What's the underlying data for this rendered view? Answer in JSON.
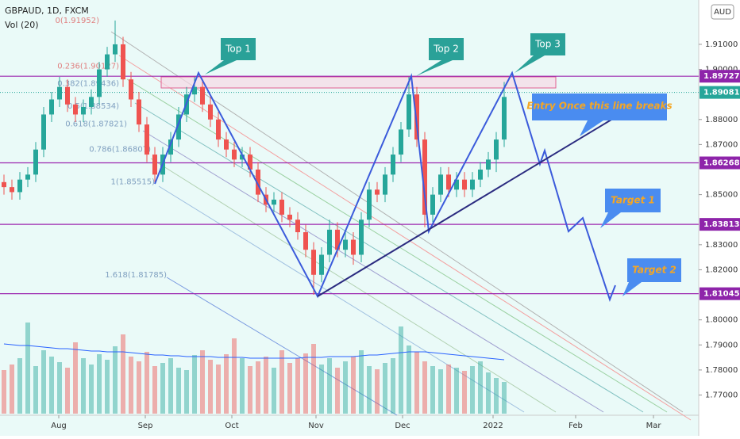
{
  "chart_data": {
    "type": "candlestick",
    "title": "GBPAUD, 1D, FXCM",
    "volume_title": "Vol (20)",
    "currency": "AUD",
    "x": [
      0,
      1,
      2,
      3,
      4,
      5,
      6,
      7,
      8,
      9,
      10,
      11,
      12,
      13,
      14,
      15,
      16,
      17,
      18,
      19,
      20,
      21,
      22,
      23,
      24,
      25,
      26,
      27,
      28,
      29,
      30,
      31,
      32,
      33,
      34,
      35,
      36,
      37,
      38,
      39,
      40,
      41,
      42,
      43,
      44,
      45,
      46,
      47,
      48,
      49,
      50,
      51,
      52,
      53,
      54,
      55,
      56,
      57,
      58,
      59,
      60,
      61,
      62,
      63
    ],
    "candles": [
      [
        1.855,
        1.858,
        1.85,
        1.853
      ],
      [
        1.853,
        1.856,
        1.848,
        1.851
      ],
      [
        1.851,
        1.859,
        1.848,
        1.856
      ],
      [
        1.856,
        1.861,
        1.853,
        1.858
      ],
      [
        1.858,
        1.871,
        1.855,
        1.868
      ],
      [
        1.868,
        1.885,
        1.865,
        1.882
      ],
      [
        1.882,
        1.891,
        1.879,
        1.888
      ],
      [
        1.888,
        1.897,
        1.885,
        1.893
      ],
      [
        1.893,
        1.896,
        1.883,
        1.886
      ],
      [
        1.886,
        1.889,
        1.879,
        1.882
      ],
      [
        1.882,
        1.888,
        1.879,
        1.885
      ],
      [
        1.885,
        1.892,
        1.882,
        1.889
      ],
      [
        1.889,
        1.903,
        1.886,
        1.9
      ],
      [
        1.9,
        1.909,
        1.897,
        1.906
      ],
      [
        1.906,
        1.9195,
        1.903,
        1.91
      ],
      [
        1.91,
        1.913,
        1.893,
        1.896
      ],
      [
        1.896,
        1.899,
        1.885,
        1.888
      ],
      [
        1.888,
        1.891,
        1.875,
        1.878
      ],
      [
        1.878,
        1.881,
        1.863,
        1.866
      ],
      [
        1.866,
        1.869,
        1.855,
        1.858
      ],
      [
        1.858,
        1.869,
        1.855,
        1.866
      ],
      [
        1.866,
        1.875,
        1.863,
        1.872
      ],
      [
        1.872,
        1.885,
        1.869,
        1.882
      ],
      [
        1.882,
        1.893,
        1.879,
        1.89
      ],
      [
        1.89,
        1.897,
        1.887,
        1.893
      ],
      [
        1.893,
        1.896,
        1.883,
        1.886
      ],
      [
        1.886,
        1.889,
        1.877,
        1.88
      ],
      [
        1.88,
        1.883,
        1.869,
        1.872
      ],
      [
        1.872,
        1.875,
        1.865,
        1.868
      ],
      [
        1.868,
        1.871,
        1.861,
        1.864
      ],
      [
        1.864,
        1.869,
        1.861,
        1.866
      ],
      [
        1.866,
        1.869,
        1.857,
        1.86
      ],
      [
        1.86,
        1.863,
        1.847,
        1.85
      ],
      [
        1.85,
        1.853,
        1.843,
        1.846
      ],
      [
        1.846,
        1.851,
        1.843,
        1.848
      ],
      [
        1.848,
        1.851,
        1.839,
        1.842
      ],
      [
        1.842,
        1.845,
        1.837,
        1.84
      ],
      [
        1.84,
        1.843,
        1.832,
        1.835
      ],
      [
        1.835,
        1.838,
        1.825,
        1.828
      ],
      [
        1.828,
        1.831,
        1.81,
        1.818
      ],
      [
        1.818,
        1.829,
        1.815,
        1.826
      ],
      [
        1.826,
        1.84,
        1.823,
        1.836
      ],
      [
        1.836,
        1.839,
        1.825,
        1.828
      ],
      [
        1.828,
        1.835,
        1.825,
        1.832
      ],
      [
        1.832,
        1.835,
        1.822,
        1.826
      ],
      [
        1.826,
        1.843,
        1.823,
        1.84
      ],
      [
        1.84,
        1.855,
        1.837,
        1.852
      ],
      [
        1.852,
        1.855,
        1.847,
        1.85
      ],
      [
        1.85,
        1.861,
        1.847,
        1.858
      ],
      [
        1.858,
        1.869,
        1.855,
        1.866
      ],
      [
        1.866,
        1.879,
        1.863,
        1.876
      ],
      [
        1.876,
        1.897,
        1.873,
        1.89
      ],
      [
        1.89,
        1.893,
        1.869,
        1.872
      ],
      [
        1.872,
        1.875,
        1.837,
        1.842
      ],
      [
        1.842,
        1.853,
        1.839,
        1.85
      ],
      [
        1.85,
        1.861,
        1.847,
        1.858
      ],
      [
        1.858,
        1.861,
        1.849,
        1.852
      ],
      [
        1.852,
        1.859,
        1.849,
        1.856
      ],
      [
        1.856,
        1.859,
        1.849,
        1.852
      ],
      [
        1.852,
        1.859,
        1.849,
        1.856
      ],
      [
        1.856,
        1.863,
        1.853,
        1.86
      ],
      [
        1.86,
        1.867,
        1.857,
        1.864
      ],
      [
        1.864,
        1.875,
        1.859,
        1.872
      ],
      [
        1.872,
        1.895,
        1.869,
        1.889
      ]
    ],
    "volume": [
      55,
      62,
      70,
      115,
      60,
      80,
      72,
      65,
      58,
      90,
      70,
      62,
      75,
      68,
      85,
      100,
      72,
      66,
      78,
      60,
      64,
      70,
      58,
      55,
      74,
      80,
      68,
      62,
      75,
      95,
      70,
      60,
      66,
      72,
      58,
      80,
      64,
      70,
      76,
      88,
      62,
      70,
      58,
      66,
      72,
      80,
      60,
      56,
      64,
      70,
      110,
      86,
      78,
      66,
      60,
      56,
      62,
      58,
      54,
      60,
      66,
      52,
      45,
      40
    ],
    "volume_ma": [
      88,
      87,
      86,
      86,
      85,
      84,
      83,
      82,
      82,
      81,
      80,
      79,
      79,
      78,
      78,
      78,
      77,
      76,
      75,
      74,
      74,
      73,
      73,
      72,
      72,
      72,
      72,
      71,
      71,
      71,
      71,
      70,
      70,
      70,
      70,
      70,
      70,
      70,
      71,
      71,
      71,
      72,
      72,
      72,
      72,
      73,
      74,
      74,
      75,
      76,
      77,
      78,
      78,
      78,
      77,
      76,
      75,
      74,
      73,
      72,
      71,
      70,
      69,
      68
    ],
    "up_color": "#26a69a",
    "down_color": "#ef5350",
    "xlim": [
      -0.5,
      87.5
    ],
    "xticks": [
      {
        "value": 6.9,
        "label": "Aug"
      },
      {
        "value": 17.8,
        "label": "Sep"
      },
      {
        "value": 28.7,
        "label": "Oct"
      },
      {
        "value": 39.3,
        "label": "Nov"
      },
      {
        "value": 50.2,
        "label": "Dec"
      },
      {
        "value": 61.6,
        "label": "2022"
      },
      {
        "value": 72,
        "label": "Feb"
      },
      {
        "value": 81.8,
        "label": "Mar"
      }
    ],
    "ylim": [
      1.7632,
      1.9277
    ],
    "yticks": [
      {
        "value": 1.91,
        "label": "1.91000"
      },
      {
        "value": 1.9,
        "label": "1.90000"
      },
      {
        "value": 1.88,
        "label": "1.88000"
      },
      {
        "value": 1.87,
        "label": "1.87000"
      },
      {
        "value": 1.85,
        "label": "1.85000"
      },
      {
        "value": 1.83,
        "label": "1.83000"
      },
      {
        "value": 1.82,
        "label": "1.82000"
      },
      {
        "value": 1.8,
        "label": "1.80000"
      },
      {
        "value": 1.79,
        "label": "1.79000"
      },
      {
        "value": 1.78,
        "label": "1.78000"
      },
      {
        "value": 1.77,
        "label": "1.77000"
      }
    ],
    "levels": [
      1.89727,
      1.86268,
      1.83813,
      1.81045
    ],
    "current_price": 1.89081,
    "fib": [
      {
        "value": 1.91952,
        "label": "0(1.91952)"
      },
      {
        "value": 1.90127,
        "label": "0.236(1.90127)"
      },
      {
        "value": 1.89436,
        "label": "0.382(1.89436)"
      },
      {
        "value": 1.88534,
        "label": "0.5(1.88534)"
      },
      {
        "value": 1.87821,
        "label": "0.618(1.87821)"
      },
      {
        "value": 1.86807,
        "label": "0.786(1.86807)"
      },
      {
        "value": 1.85515,
        "label": "1(1.85515)"
      },
      {
        "value": 1.81785,
        "label": "1.618(1.81785)"
      }
    ],
    "annotations": [
      "Top 1",
      "Top 2",
      "Top 3",
      "Entry Once this line breaks",
      "Target 1",
      "Target 2"
    ]
  }
}
